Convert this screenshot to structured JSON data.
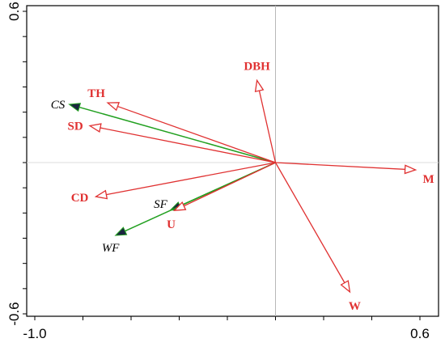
{
  "chart_data": {
    "type": "biplot",
    "xlim": [
      -1.0,
      0.6
    ],
    "ylim": [
      -0.6,
      0.6
    ],
    "x_tick_labels": [
      {
        "value": -1.0,
        "label": "-1.0"
      },
      {
        "value": 0.6,
        "label": "0.6"
      }
    ],
    "y_tick_labels": [
      {
        "value": 0.6,
        "label": "0.6"
      },
      {
        "value": -0.6,
        "label": "-0.6"
      }
    ],
    "origin": [
      0,
      0
    ],
    "environmental_vectors": [
      {
        "label": "DBH",
        "x": -0.077,
        "y": 0.326
      },
      {
        "label": "TH",
        "x": -0.697,
        "y": 0.237
      },
      {
        "label": "SD",
        "x": -0.771,
        "y": 0.146
      },
      {
        "label": "M",
        "x": 0.582,
        "y": -0.029
      },
      {
        "label": "CD",
        "x": -0.746,
        "y": -0.135
      },
      {
        "label": "U",
        "x": -0.42,
        "y": -0.19
      },
      {
        "label": "W",
        "x": 0.309,
        "y": -0.513
      }
    ],
    "species_vectors": [
      {
        "label": "CS",
        "x": -0.857,
        "y": 0.231
      },
      {
        "label": "SF",
        "x": -0.437,
        "y": -0.189
      },
      {
        "label": "WF",
        "x": -0.665,
        "y": -0.289
      }
    ],
    "colors": {
      "environmental": "#e03131",
      "species": "#22a020",
      "species_head": "#1b2540",
      "axes": "#000000",
      "zero_lines": "#b8b8b8"
    }
  }
}
